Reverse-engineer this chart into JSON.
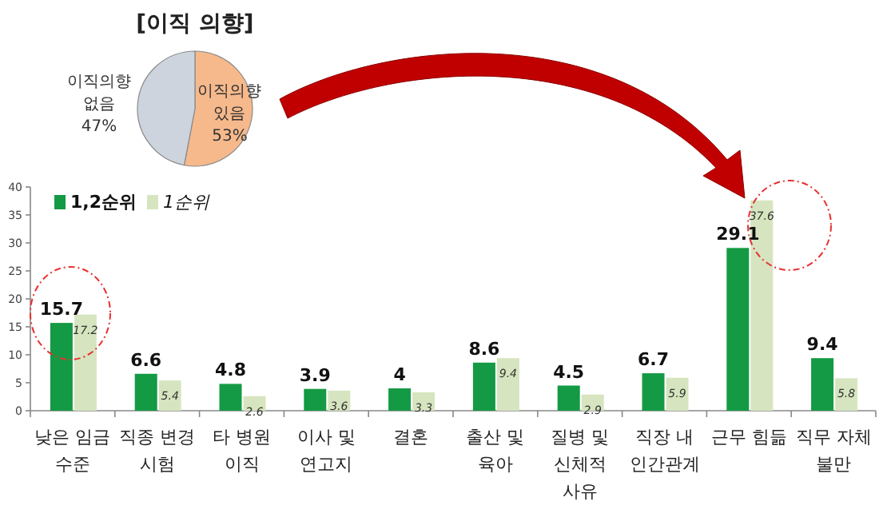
{
  "chart_data": [
    {
      "type": "pie",
      "title": "[이직 의향]",
      "categories": [
        "이직의향 없음",
        "이직의향 있음"
      ],
      "values": [
        47,
        53
      ],
      "colors": [
        "#cdd4de",
        "#f6b98c"
      ],
      "value_labels": [
        "47%",
        "53%"
      ]
    },
    {
      "type": "bar",
      "categories": [
        "낮은 임금 수준",
        "직종 변경 시험",
        "타 병원 이직",
        "이사 및 연고지",
        "결혼",
        "출산 및 육아",
        "질병 및 신체적 사유",
        "직장 내 인간관계",
        "근무 힘듦",
        "직무 자체 불만"
      ],
      "ylim": [
        0,
        40
      ],
      "yticks": [
        0,
        5,
        10,
        15,
        20,
        25,
        30,
        35,
        40
      ],
      "legend": "top left",
      "data_labels": true,
      "series": [
        {
          "name": "1,2순위",
          "color": "#149a44",
          "values": [
            15.7,
            6.6,
            4.8,
            3.9,
            4,
            8.6,
            4.5,
            6.7,
            29.1,
            9.4
          ]
        },
        {
          "name": "1순위",
          "color": "#d6e5bf",
          "values": [
            17.2,
            5.4,
            2.6,
            3.6,
            3.3,
            9.4,
            2.9,
            5.9,
            37.6,
            5.8
          ]
        }
      ]
    }
  ]
}
